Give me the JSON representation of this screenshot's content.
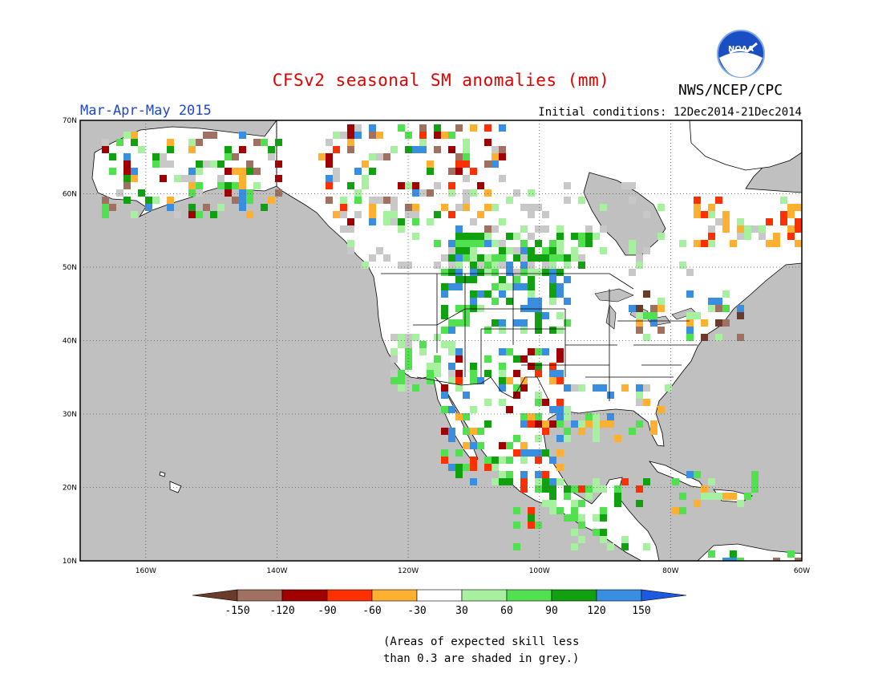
{
  "title": "CFSv2 seasonal SM anomalies (mm)",
  "agency": "NWS/NCEP/CPC",
  "logo_text": "NOAA",
  "season": "Mar-Apr-May 2015",
  "initial_conditions": "Initial conditions: 12Dec2014-21Dec2014",
  "note": {
    "line1": "(Areas of expected skill less",
    "line2": "than 0.3 are shaded in grey.)"
  },
  "map": {
    "lon_range": [
      -170,
      -60
    ],
    "lat_range": [
      10,
      70
    ],
    "lon_ticks": [
      -160,
      -140,
      -120,
      -100,
      -80,
      -60
    ],
    "lat_ticks": [
      10,
      20,
      30,
      40,
      50,
      60,
      70
    ],
    "lon_labels": [
      "160W",
      "140W",
      "120W",
      "100W",
      "80W",
      "60W"
    ],
    "lat_labels": [
      "10N",
      "20N",
      "30N",
      "40N",
      "50N",
      "60N",
      "70N"
    ],
    "ocean_color": "#c0c0c0",
    "land_color": "#ffffff"
  },
  "colorbar": {
    "labels": [
      "-150",
      "-120",
      "-90",
      "-60",
      "-30",
      "30",
      "60",
      "90",
      "120",
      "150"
    ],
    "colors": [
      "#6b3b2a",
      "#a07060",
      "#a00000",
      "#ff3000",
      "#ffb030",
      "#ffffff",
      "#a6f0a0",
      "#50e050",
      "#10a010",
      "#3a8ee0",
      "#1e5ae0"
    ]
  }
}
